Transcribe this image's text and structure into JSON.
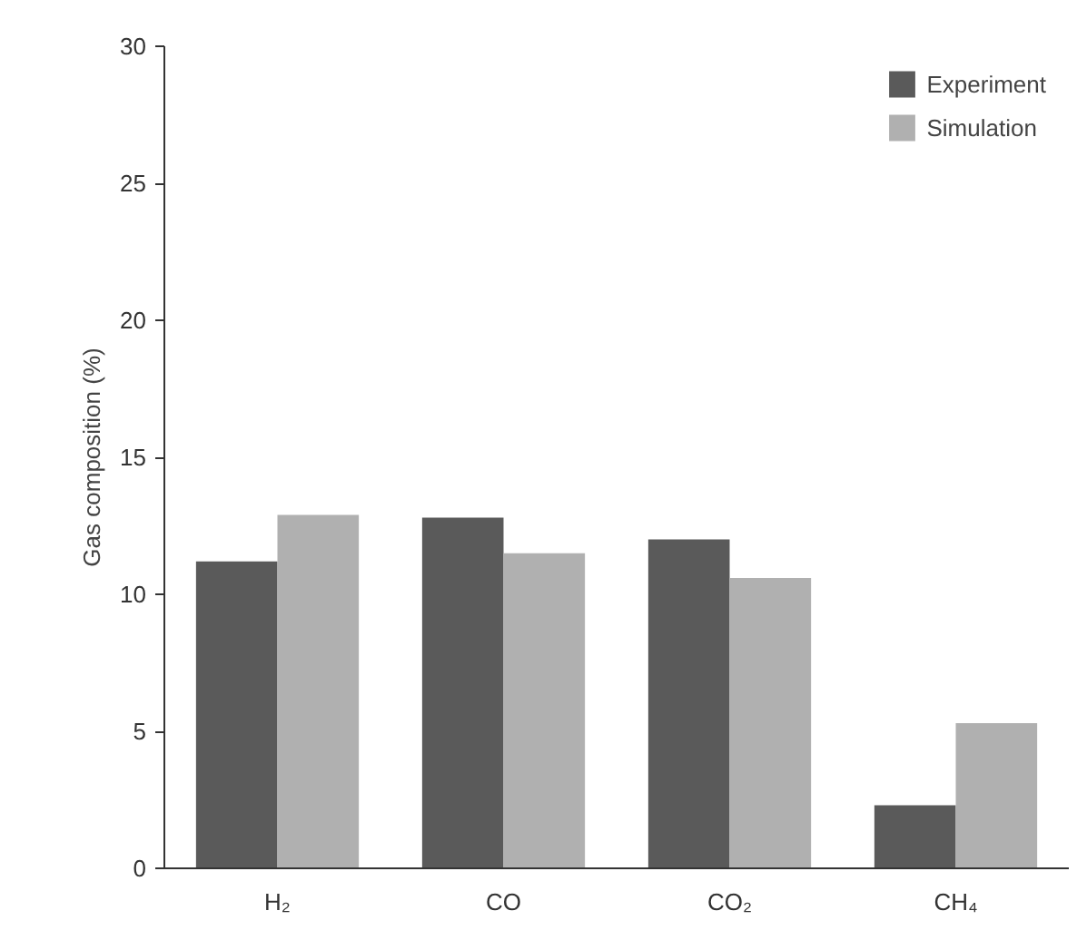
{
  "chart_data": {
    "type": "bar",
    "ylabel": "Gas composition (%)",
    "categories": [
      "H₂",
      "CO",
      "CO₂",
      "CH₄"
    ],
    "series": [
      {
        "name": "Experiment",
        "color": "#5a5a5a",
        "values": [
          11.2,
          12.8,
          12.0,
          2.3
        ]
      },
      {
        "name": "Simulation",
        "color": "#b0b0b0",
        "values": [
          12.9,
          11.5,
          10.6,
          5.3
        ]
      }
    ],
    "ylim": [
      0,
      30
    ],
    "yticks": [
      0,
      5,
      10,
      15,
      20,
      25,
      30
    ],
    "grid": false,
    "legend": "top right"
  }
}
